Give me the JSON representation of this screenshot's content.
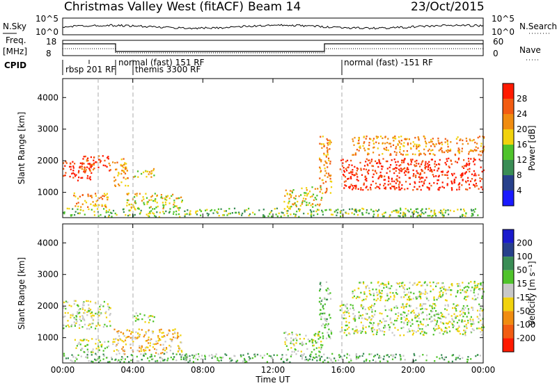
{
  "header": {
    "title": "Christmas Valley West (fitACF)",
    "beam": "Beam 14",
    "date": "23/Oct/2015"
  },
  "nsky_panel": {
    "left_label": "N.Sky",
    "right_label": "N.Search",
    "left_ticks": [
      "10^5",
      "10^0"
    ],
    "right_ticks": [
      "10^5",
      "10^0"
    ]
  },
  "freq_panel": {
    "left_label_1": "Freq.",
    "left_label_2": "[MHz]",
    "right_label": "Nave",
    "left_ticks": [
      "18",
      "8"
    ],
    "right_ticks": [
      "60",
      "0"
    ]
  },
  "cpid_panel": {
    "label": "CPID",
    "segments": [
      {
        "text": "rbsp 201 RF",
        "start_hr": 0.0
      },
      {
        "text": "normal (fast) 151 RF",
        "start_hr": 2.8
      },
      {
        "text": "themis 3300 RF",
        "start_hr": 4.0
      },
      {
        "text": "normal (fast) -151 RF",
        "start_hr": 16.0
      }
    ]
  },
  "time_axis": {
    "label": "Time UT",
    "ticks": [
      "00:00",
      "04:00",
      "08:00",
      "12:00",
      "16:00",
      "20:00",
      "00:00"
    ]
  },
  "power_panel": {
    "ylabel": "Slant Range [km]",
    "yticks": [
      "1000",
      "2000",
      "3000",
      "4000"
    ],
    "colorbar_label": "Power [dB]",
    "colorbar_ticks": [
      "4",
      "8",
      "12",
      "16",
      "20",
      "24",
      "28"
    ],
    "colors": [
      "#1a1aff",
      "#27408b",
      "#3a8d55",
      "#4fc32b",
      "#f1d20d",
      "#f08c10",
      "#f25c12",
      "#ff1a00"
    ]
  },
  "velocity_panel": {
    "ylabel": "Slant Range [km]",
    "yticks": [
      "1000",
      "2000",
      "3000",
      "4000"
    ],
    "colorbar_label": "Velocity [m s⁻¹]",
    "colorbar_ticks": [
      "200",
      "100",
      "50",
      "15",
      "-15",
      "-50",
      "-100",
      "-200"
    ],
    "colors": [
      "#1a1acc",
      "#27408b",
      "#3a8d55",
      "#4fc32b",
      "#c8c8c8",
      "#f1d20d",
      "#f08c10",
      "#f25c12",
      "#ff1a00"
    ]
  },
  "chart_data": [
    {
      "type": "heatmap",
      "title": "Power",
      "xlabel": "Time UT",
      "ylabel": "Slant Range [km]",
      "xlim": [
        0,
        24
      ],
      "ylim": [
        200,
        4600
      ],
      "colorbar": "Power [dB]",
      "blobs": [
        {
          "t": [
            0.0,
            1.7
          ],
          "r": [
            1400,
            2000
          ],
          "level": 7
        },
        {
          "t": [
            1.0,
            2.7
          ],
          "r": [
            1700,
            2200
          ],
          "level": 6
        },
        {
          "t": [
            0.6,
            2.6
          ],
          "r": [
            550,
            1000
          ],
          "level": 5
        },
        {
          "t": [
            2.8,
            3.7
          ],
          "r": [
            1200,
            2100
          ],
          "level": 5
        },
        {
          "t": [
            3.6,
            6.8
          ],
          "r": [
            500,
            1000
          ],
          "level": 4
        },
        {
          "t": [
            4.0,
            5.2
          ],
          "r": [
            1500,
            1800
          ],
          "level": 4
        },
        {
          "t": [
            0.0,
            23.8
          ],
          "r": [
            250,
            520
          ],
          "level": 3
        },
        {
          "t": [
            12.6,
            14.8
          ],
          "r": [
            550,
            1200
          ],
          "level": 4
        },
        {
          "t": [
            14.6,
            15.3
          ],
          "r": [
            1000,
            2800
          ],
          "level": 5
        },
        {
          "t": [
            15.8,
            24.0
          ],
          "r": [
            1100,
            2100
          ],
          "level": 7
        },
        {
          "t": [
            16.5,
            24.0
          ],
          "r": [
            2200,
            2800
          ],
          "level": 5
        }
      ]
    },
    {
      "type": "heatmap",
      "title": "Velocity",
      "xlabel": "Time UT",
      "ylabel": "Slant Range [km]",
      "xlim": [
        0,
        24
      ],
      "ylim": [
        200,
        4600
      ],
      "colorbar": "Velocity [m s⁻¹]",
      "blobs": [
        {
          "t": [
            0.0,
            2.7
          ],
          "r": [
            1300,
            2200
          ],
          "level": 4
        },
        {
          "t": [
            0.6,
            2.6
          ],
          "r": [
            550,
            1000
          ],
          "level": 4
        },
        {
          "t": [
            2.8,
            6.8
          ],
          "r": [
            500,
            1300
          ],
          "level": 5
        },
        {
          "t": [
            4.0,
            5.2
          ],
          "r": [
            1500,
            1800
          ],
          "level": 4
        },
        {
          "t": [
            0.0,
            23.8
          ],
          "r": [
            250,
            520
          ],
          "level": 3
        },
        {
          "t": [
            12.6,
            14.8
          ],
          "r": [
            550,
            1200
          ],
          "level": 4
        },
        {
          "t": [
            14.6,
            15.3
          ],
          "r": [
            1000,
            2800
          ],
          "level": 3
        },
        {
          "t": [
            15.8,
            24.0
          ],
          "r": [
            1100,
            2100
          ],
          "level": 4
        },
        {
          "t": [
            16.5,
            24.0
          ],
          "r": [
            2200,
            2800
          ],
          "level": 4
        }
      ]
    }
  ]
}
